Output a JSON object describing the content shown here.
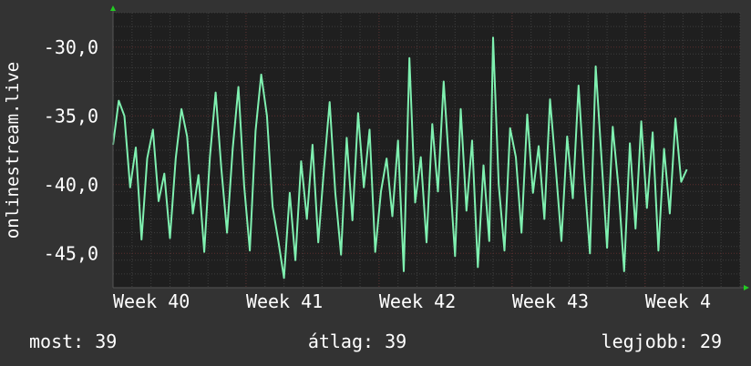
{
  "chart_data": {
    "type": "line",
    "ylabel": "onlinestream.live",
    "ylim": [
      -47.5,
      -27.5
    ],
    "xlim": [
      0,
      33
    ],
    "y_ticks": [
      {
        "value": -30,
        "label": "-30,0"
      },
      {
        "value": -35,
        "label": "-35,0"
      },
      {
        "value": -40,
        "label": "-40,0"
      },
      {
        "value": -45,
        "label": "-45,0"
      }
    ],
    "x_ticks": [
      {
        "value": 0,
        "label": "Week 40"
      },
      {
        "value": 7,
        "label": "Week 41"
      },
      {
        "value": 14,
        "label": "Week 42"
      },
      {
        "value": 21,
        "label": "Week 43"
      },
      {
        "value": 28,
        "label": "Week 4"
      }
    ],
    "grid": true,
    "colors": {
      "line": "#7ff0b0",
      "background": "#333333",
      "plot_bg": "#1f1f1f",
      "grid": "#3f3f3f",
      "week_grid": "#5a2f2f",
      "axis_arrow": "#22cc22"
    },
    "series": [
      {
        "values": [
          [
            0.0,
            -37.1
          ],
          [
            0.3,
            -33.9
          ],
          [
            0.6,
            -35.0
          ],
          [
            0.9,
            -40.2
          ],
          [
            1.2,
            -37.3
          ],
          [
            1.5,
            -44.0
          ],
          [
            1.8,
            -38.1
          ],
          [
            2.1,
            -36.0
          ],
          [
            2.4,
            -41.2
          ],
          [
            2.7,
            -39.2
          ],
          [
            3.0,
            -43.9
          ],
          [
            3.3,
            -38.1
          ],
          [
            3.6,
            -34.5
          ],
          [
            3.9,
            -36.5
          ],
          [
            4.2,
            -42.1
          ],
          [
            4.5,
            -39.3
          ],
          [
            4.8,
            -44.9
          ],
          [
            5.1,
            -38.0
          ],
          [
            5.4,
            -33.3
          ],
          [
            5.7,
            -38.8
          ],
          [
            6.0,
            -43.5
          ],
          [
            6.3,
            -37.4
          ],
          [
            6.6,
            -32.9
          ],
          [
            6.9,
            -40.1
          ],
          [
            7.2,
            -44.8
          ],
          [
            7.5,
            -36.1
          ],
          [
            7.8,
            -32.0
          ],
          [
            8.1,
            -35.0
          ],
          [
            8.4,
            -41.6
          ],
          [
            8.7,
            -44.1
          ],
          [
            9.0,
            -46.8
          ],
          [
            9.3,
            -40.6
          ],
          [
            9.6,
            -45.5
          ],
          [
            9.9,
            -38.3
          ],
          [
            10.2,
            -42.5
          ],
          [
            10.5,
            -37.1
          ],
          [
            10.8,
            -44.2
          ],
          [
            11.1,
            -38.9
          ],
          [
            11.4,
            -34.0
          ],
          [
            11.7,
            -40.6
          ],
          [
            12.0,
            -45.1
          ],
          [
            12.3,
            -36.6
          ],
          [
            12.6,
            -42.6
          ],
          [
            12.9,
            -34.8
          ],
          [
            13.2,
            -40.2
          ],
          [
            13.5,
            -36.0
          ],
          [
            13.8,
            -44.9
          ],
          [
            14.1,
            -40.5
          ],
          [
            14.4,
            -38.1
          ],
          [
            14.7,
            -42.3
          ],
          [
            15.0,
            -36.8
          ],
          [
            15.3,
            -46.3
          ],
          [
            15.6,
            -30.8
          ],
          [
            15.9,
            -41.3
          ],
          [
            16.2,
            -38.0
          ],
          [
            16.5,
            -44.2
          ],
          [
            16.8,
            -35.6
          ],
          [
            17.1,
            -40.5
          ],
          [
            17.4,
            -32.5
          ],
          [
            17.7,
            -38.8
          ],
          [
            18.0,
            -45.2
          ],
          [
            18.3,
            -34.5
          ],
          [
            18.6,
            -41.9
          ],
          [
            18.9,
            -36.8
          ],
          [
            19.2,
            -46.0
          ],
          [
            19.5,
            -38.6
          ],
          [
            19.8,
            -44.1
          ],
          [
            20.0,
            -29.3
          ],
          [
            20.3,
            -40.0
          ],
          [
            20.6,
            -44.8
          ],
          [
            20.9,
            -35.9
          ],
          [
            21.2,
            -38.0
          ],
          [
            21.5,
            -43.5
          ],
          [
            21.8,
            -34.9
          ],
          [
            22.1,
            -40.6
          ],
          [
            22.4,
            -37.2
          ],
          [
            22.7,
            -42.5
          ],
          [
            23.0,
            -33.8
          ],
          [
            23.3,
            -38.8
          ],
          [
            23.6,
            -44.1
          ],
          [
            23.9,
            -36.5
          ],
          [
            24.2,
            -41.0
          ],
          [
            24.5,
            -32.8
          ],
          [
            24.8,
            -39.4
          ],
          [
            25.1,
            -45.0
          ],
          [
            25.4,
            -31.4
          ],
          [
            25.7,
            -37.9
          ],
          [
            26.0,
            -44.6
          ],
          [
            26.3,
            -35.8
          ],
          [
            26.6,
            -40.2
          ],
          [
            26.9,
            -46.3
          ],
          [
            27.2,
            -37.0
          ],
          [
            27.5,
            -43.2
          ],
          [
            27.8,
            -35.4
          ],
          [
            28.1,
            -41.7
          ],
          [
            28.4,
            -36.2
          ],
          [
            28.7,
            -44.8
          ],
          [
            29.0,
            -37.4
          ],
          [
            29.3,
            -42.1
          ],
          [
            29.6,
            -35.2
          ],
          [
            29.9,
            -39.8
          ],
          [
            30.2,
            -38.9
          ]
        ]
      }
    ]
  },
  "stats": {
    "current": "most: 39",
    "average": "átlag: 39",
    "best": "legjobb: 29"
  }
}
